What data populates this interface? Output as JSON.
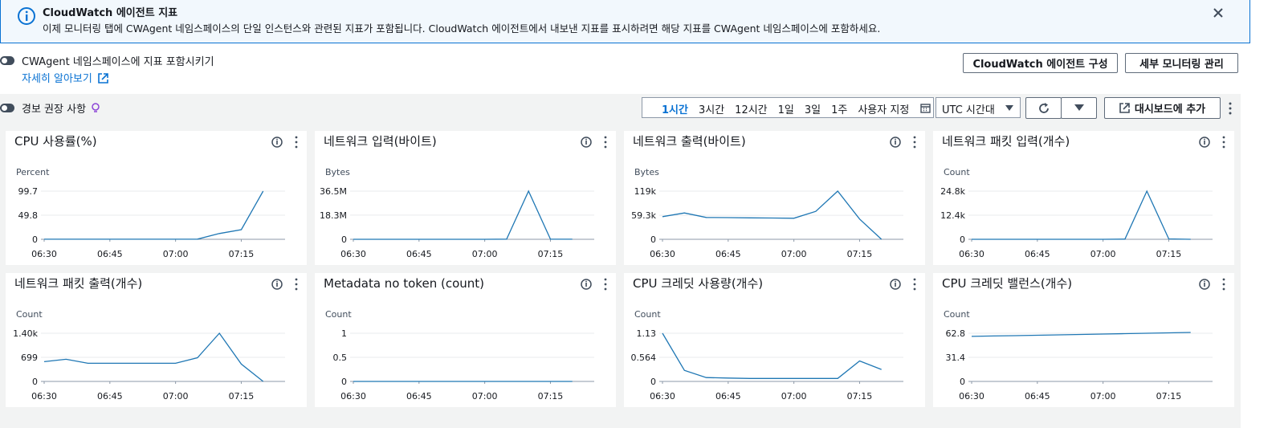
{
  "banner": {
    "title": "CloudWatch 에이전트 지표",
    "text": "이제 모니터링 탭에 CWAgent 네임스페이스의 단일 인스턴스와 관련된 지표가 포함됩니다. CloudWatch 에이전트에서 내보낸 지표를 표시하려면 해당 지표를 CWAgent 네임스페이스에 포함하세요."
  },
  "cwagent_toggle": {
    "label": "CWAgent 네임스페이스에 지표 포함시키기",
    "link": "자세히 알아보기"
  },
  "buttons": [
    "CloudWatch 에이전트 구성",
    "세부 모니터링 관리"
  ],
  "alarm_toggle": "경보 권장 사항",
  "time_ranges": [
    "1시간",
    "3시간",
    "12시간",
    "1일",
    "3일",
    "1주",
    "사용자 지정"
  ],
  "timezone": "UTC 시간대",
  "add_to_dashboard": "대시보드에 추가",
  "chart_data": [
    {
      "type": "line",
      "title": "CPU 사용률(%)",
      "y_label": "Percent",
      "color": "#1f77b4",
      "x": [
        "06:30",
        "06:35",
        "06:40",
        "06:45",
        "06:50",
        "06:55",
        "07:00",
        "07:05",
        "07:10",
        "07:15",
        "07:20"
      ],
      "values": [
        0.2,
        0.2,
        0.2,
        0.2,
        0.2,
        0.2,
        0.2,
        0.3,
        12,
        20,
        99.7
      ],
      "xlim": [
        "06:30",
        "07:25"
      ],
      "xticks": [
        "06:30",
        "06:45",
        "07:00",
        "07:15"
      ],
      "ylim": [
        0,
        99.7
      ],
      "yticks": [
        0,
        49.8,
        99.7
      ]
    },
    {
      "type": "line",
      "title": "네트워크 입력(바이트)",
      "y_label": "Bytes",
      "color": "#1f77b4",
      "x": [
        "06:30",
        "06:35",
        "06:40",
        "06:45",
        "06:50",
        "06:55",
        "07:00",
        "07:05",
        "07:10",
        "07:15",
        "07:20"
      ],
      "values": [
        0,
        0,
        0,
        0,
        0,
        0,
        0,
        100000,
        36500000,
        50000,
        50000
      ],
      "xlim": [
        "06:30",
        "07:25"
      ],
      "xticks": [
        "06:30",
        "06:45",
        "07:00",
        "07:15"
      ],
      "ylim": [
        0,
        36500000
      ],
      "yticks": [
        0,
        {
          "value": 18300000,
          "label": "18.3M"
        },
        {
          "value": 36500000,
          "label": "36.5M"
        }
      ]
    },
    {
      "type": "line",
      "title": "네트워크 출력(바이트)",
      "y_label": "Bytes",
      "color": "#1f77b4",
      "x": [
        "06:30",
        "06:35",
        "06:40",
        "06:45",
        "06:50",
        "06:55",
        "07:00",
        "07:05",
        "07:10",
        "07:15",
        "07:20"
      ],
      "values": [
        56000,
        65000,
        54000,
        53500,
        53000,
        52500,
        52000,
        69000,
        119000,
        50000,
        0
      ],
      "xlim": [
        "06:30",
        "07:25"
      ],
      "xticks": [
        "06:30",
        "06:45",
        "07:00",
        "07:15"
      ],
      "ylim": [
        0,
        119000
      ],
      "yticks": [
        0,
        {
          "value": 59300,
          "label": "59.3k"
        },
        {
          "value": 119000,
          "label": "119k"
        }
      ]
    },
    {
      "type": "line",
      "title": "네트워크 패킷 입력(개수)",
      "y_label": "Count",
      "color": "#1f77b4",
      "x": [
        "06:30",
        "06:35",
        "06:40",
        "06:45",
        "06:50",
        "06:55",
        "07:00",
        "07:05",
        "07:10",
        "07:15",
        "07:20"
      ],
      "values": [
        0,
        0,
        0,
        0,
        0,
        0,
        0,
        100,
        24800,
        200,
        0
      ],
      "xlim": [
        "06:30",
        "07:25"
      ],
      "xticks": [
        "06:30",
        "06:45",
        "07:00",
        "07:15"
      ],
      "ylim": [
        0,
        24800
      ],
      "yticks": [
        0,
        {
          "value": 12400,
          "label": "12.4k"
        },
        {
          "value": 24800,
          "label": "24.8k"
        }
      ]
    },
    {
      "type": "line",
      "title": "네트워크 패킷 출력(개수)",
      "y_label": "Count",
      "color": "#1f77b4",
      "x": [
        "06:30",
        "06:35",
        "06:40",
        "06:45",
        "06:50",
        "06:55",
        "07:00",
        "07:05",
        "07:10",
        "07:15",
        "07:20"
      ],
      "values": [
        574,
        643,
        528,
        528,
        528,
        528,
        528,
        689,
        1400,
        505,
        0
      ],
      "xlim": [
        "06:30",
        "07:25"
      ],
      "xticks": [
        "06:30",
        "06:45",
        "07:00",
        "07:15"
      ],
      "ylim": [
        0,
        1400
      ],
      "yticks": [
        0,
        699,
        {
          "value": 1400,
          "label": "1.40k"
        }
      ]
    },
    {
      "type": "line",
      "title": "Metadata no token (count)",
      "y_label": "Count",
      "color": "#1f77b4",
      "x": [
        "06:30",
        "06:35",
        "06:40",
        "06:45",
        "06:50",
        "06:55",
        "07:00",
        "07:05",
        "07:10",
        "07:15",
        "07:20"
      ],
      "values": [
        0,
        0,
        0,
        0,
        0,
        0,
        0,
        0,
        0,
        0,
        0
      ],
      "xlim": [
        "06:30",
        "07:25"
      ],
      "xticks": [
        "06:30",
        "06:45",
        "07:00",
        "07:15"
      ],
      "ylim": [
        0,
        1
      ],
      "yticks": [
        0,
        0.5,
        1
      ]
    },
    {
      "type": "line",
      "title": "CPU 크레딧 사용량(개수)",
      "y_label": "Count",
      "color": "#1f77b4",
      "x": [
        "06:30",
        "06:35",
        "06:40",
        "06:45",
        "06:50",
        "06:55",
        "07:00",
        "07:05",
        "07:10",
        "07:15",
        "07:20"
      ],
      "values": [
        1.13,
        0.26,
        0.09,
        0.08,
        0.07,
        0.07,
        0.07,
        0.07,
        0.07,
        0.48,
        0.28
      ],
      "xlim": [
        "06:30",
        "07:25"
      ],
      "xticks": [
        "06:30",
        "06:45",
        "07:00",
        "07:15"
      ],
      "ylim": [
        0,
        1.13
      ],
      "yticks": [
        0,
        0.564,
        1.13
      ]
    },
    {
      "type": "line",
      "title": "CPU 크레딧 밸런스(개수)",
      "y_label": "Count",
      "color": "#1f77b4",
      "x": [
        "06:30",
        "06:35",
        "06:40",
        "06:45",
        "06:50",
        "06:55",
        "07:00",
        "07:05",
        "07:10",
        "07:15",
        "07:20"
      ],
      "values": [
        58.7,
        59.2,
        59.7,
        60.2,
        60.7,
        61.2,
        61.8,
        62.3,
        62.8,
        63.3,
        63.8
      ],
      "xlim": [
        "06:30",
        "07:25"
      ],
      "xticks": [
        "06:30",
        "06:45",
        "07:00",
        "07:15"
      ],
      "ylim": [
        0,
        62.8
      ],
      "yticks": [
        0,
        31.4,
        62.8
      ]
    }
  ]
}
